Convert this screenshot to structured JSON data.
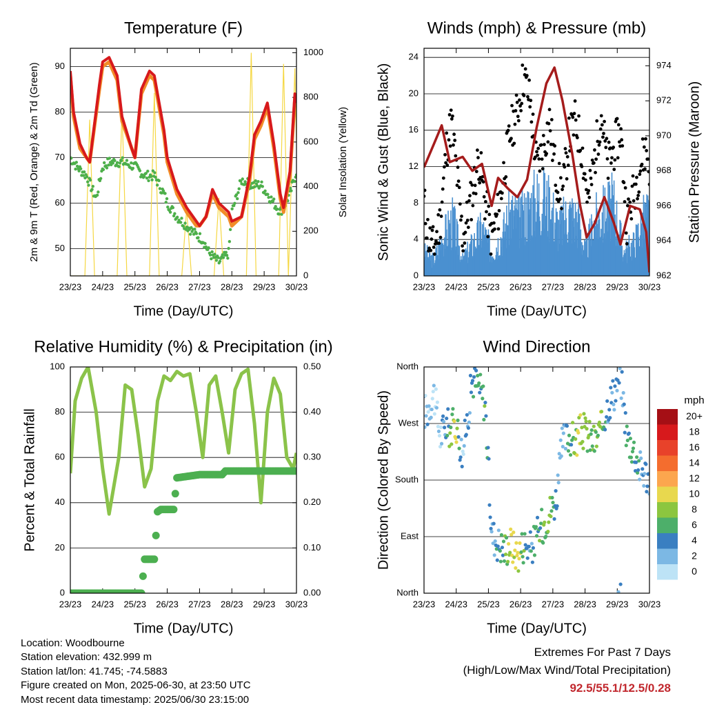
{
  "meta": {
    "location": "Location: Woodbourne",
    "elevation": "Station elevation: 432.999 m",
    "latlon": "Station lat/lon: 41.745; -74.5883",
    "created": "Figure created on Mon, 2025-06-30, at 23:50 UTC",
    "timestamp": "Most recent data timestamp: 2025/06/30 23:15:00"
  },
  "extremes": {
    "title": "Extremes For Past 7 Days",
    "subtitle": "(High/Low/Max Wind/Total Precipitation)",
    "values": "92.5/55.1/12.5/0.28"
  },
  "chart_data": [
    {
      "type": "line",
      "title": "Temperature (F)",
      "xlabel": "Time (Day/UTC)",
      "ylabel": "2m & 9m T (Red, Orange) & 2m Td (Green)",
      "y2label": "Solar Insolation (Yellow)",
      "x_tick_labels": [
        "23/23",
        "24/23",
        "25/23",
        "26/23",
        "27/23",
        "28/23",
        "29/23",
        "30/23"
      ],
      "xlim": [
        0,
        7
      ],
      "ylim": [
        44,
        94
      ],
      "y_ticks": [
        50,
        60,
        70,
        80,
        90
      ],
      "y2lim": [
        0,
        1020
      ],
      "y2_ticks": [
        0,
        200,
        400,
        600,
        800,
        1000
      ],
      "grid": true,
      "colors": {
        "t2m": "#d7191c",
        "t9m": "#f28c28",
        "td2m": "#4daf4a",
        "solar": "#f5d742"
      },
      "series": [
        {
          "key": "t2m",
          "x": [
            0,
            0.1,
            0.3,
            0.5,
            0.6,
            0.9,
            1.0,
            1.2,
            1.45,
            1.6,
            1.9,
            2.0,
            2.2,
            2.45,
            2.6,
            2.9,
            3.0,
            3.3,
            3.6,
            3.9,
            4.0,
            4.2,
            4.4,
            4.6,
            4.9,
            5.0,
            5.3,
            5.55,
            5.7,
            5.9,
            6.1,
            6.3,
            6.5,
            6.6,
            6.8,
            6.95,
            7.0
          ],
          "y": [
            89,
            80,
            73,
            70,
            69,
            86,
            91,
            92,
            88,
            79,
            72,
            70,
            85,
            89,
            88,
            76,
            70,
            63,
            59,
            56,
            55,
            57,
            63,
            60,
            58,
            56,
            57,
            66,
            75,
            78,
            82,
            73,
            62,
            59,
            67,
            84,
            82
          ]
        },
        {
          "key": "t9m",
          "x": [
            0,
            0.1,
            0.3,
            0.5,
            0.6,
            0.9,
            1.0,
            1.2,
            1.45,
            1.6,
            1.9,
            2.0,
            2.2,
            2.45,
            2.6,
            2.9,
            3.0,
            3.3,
            3.6,
            3.9,
            4.0,
            4.2,
            4.4,
            4.6,
            4.9,
            5.0,
            5.3,
            5.55,
            5.7,
            5.9,
            6.1,
            6.3,
            6.5,
            6.6,
            6.8,
            6.95,
            7.0
          ],
          "y": [
            88,
            79,
            72,
            70,
            69,
            85,
            90,
            91,
            87,
            78,
            72,
            70,
            84,
            88,
            87,
            75,
            69,
            62,
            58,
            55,
            55,
            57,
            62,
            59,
            57,
            55,
            57,
            65,
            74,
            77,
            81,
            72,
            61,
            58,
            66,
            83,
            81
          ]
        },
        {
          "key": "td2m",
          "x": [
            0,
            0.2,
            0.5,
            0.8,
            1.0,
            1.2,
            1.6,
            2.0,
            2.3,
            2.6,
            2.9,
            3.0,
            3.3,
            3.6,
            3.9,
            4.1,
            4.3,
            4.6,
            4.9,
            5.0,
            5.3,
            5.6,
            5.9,
            6.2,
            6.5,
            6.8,
            7.0
          ],
          "y": [
            70,
            68,
            66,
            61,
            68,
            69,
            69,
            68,
            66,
            66,
            62,
            60,
            57,
            55,
            53,
            52,
            49,
            47,
            49,
            58,
            65,
            64,
            64,
            61,
            58,
            62,
            67
          ]
        },
        {
          "key": "solar",
          "x": [
            0,
            0.05,
            0.45,
            0.6,
            0.75,
            1.05,
            1.45,
            1.6,
            1.75,
            2.05,
            2.45,
            2.6,
            2.75,
            3.05,
            3.45,
            3.6,
            3.75,
            4.05,
            4.45,
            4.6,
            4.75,
            5.05,
            5.45,
            5.6,
            5.75,
            6.05,
            6.45,
            6.6,
            6.75,
            6.95,
            7.0
          ],
          "y": [
            0,
            0,
            0,
            700,
            0,
            0,
            0,
            750,
            0,
            0,
            0,
            820,
            0,
            0,
            0,
            300,
            0,
            0,
            0,
            350,
            0,
            0,
            0,
            1000,
            0,
            0,
            0,
            950,
            0,
            930,
            600
          ]
        }
      ]
    },
    {
      "type": "scatter",
      "title": "Winds (mph) & Pressure (mb)",
      "xlabel": "Time (Day/UTC)",
      "ylabel": "Sonic Wind & Gust (Blue, Black)",
      "y2label": "Station Pressure (Maroon)",
      "x_tick_labels": [
        "23/23",
        "24/23",
        "25/23",
        "26/23",
        "27/23",
        "28/23",
        "29/23",
        "30/23"
      ],
      "xlim": [
        0,
        7
      ],
      "ylim": [
        0,
        25
      ],
      "y_ticks": [
        0,
        4,
        8,
        12,
        16,
        20,
        24
      ],
      "y2lim": [
        962,
        975
      ],
      "y2_ticks": [
        962,
        964,
        966,
        968,
        970,
        972,
        974
      ],
      "grid": true,
      "colors": {
        "wind": "#4a90d0",
        "gust": "#000000",
        "pressure": "#a51c1c"
      },
      "series": [
        {
          "key": "wind",
          "x": [
            0,
            0.3,
            0.6,
            0.9,
            1.2,
            1.5,
            1.8,
            2.1,
            2.4,
            2.7,
            3.0,
            3.3,
            3.6,
            3.9,
            4.2,
            4.5,
            4.8,
            5.0,
            5.3,
            5.6,
            5.9,
            6.2,
            6.5,
            6.8,
            7.0
          ],
          "y": [
            3,
            2,
            5,
            7,
            2,
            4,
            6,
            3,
            5,
            8,
            7,
            9,
            10,
            9,
            6,
            8,
            7,
            3,
            7,
            8,
            9,
            3,
            4,
            7,
            8
          ]
        },
        {
          "key": "gust",
          "x": [
            0,
            0.15,
            0.3,
            0.5,
            0.7,
            0.85,
            1.0,
            1.2,
            1.5,
            1.7,
            1.9,
            2.1,
            2.3,
            2.5,
            2.7,
            2.9,
            3.1,
            3.3,
            3.5,
            3.7,
            3.9,
            4.1,
            4.3,
            4.5,
            4.7,
            4.9,
            5.1,
            5.3,
            5.5,
            5.7,
            5.9,
            6.1,
            6.3,
            6.5,
            6.7,
            6.9,
            7.0
          ],
          "y": [
            8,
            4,
            3,
            6,
            14,
            17,
            12,
            4,
            9,
            13,
            8,
            4,
            7,
            12,
            16,
            18,
            22,
            19,
            12,
            14,
            17,
            11,
            9,
            15,
            17,
            14,
            8,
            13,
            18,
            12,
            14,
            16,
            6,
            9,
            12,
            14,
            12
          ]
        },
        {
          "key": "pressure",
          "x": [
            0,
            0.3,
            0.55,
            0.8,
            1.2,
            1.5,
            1.8,
            2.1,
            2.3,
            2.6,
            2.9,
            3.2,
            3.5,
            3.8,
            4.05,
            4.3,
            4.6,
            4.85,
            5.05,
            5.3,
            5.6,
            5.9,
            6.1,
            6.4,
            6.7,
            6.9,
            7.0
          ],
          "y": [
            968.2,
            969.5,
            970.6,
            968.5,
            968.8,
            968.0,
            968.4,
            966.0,
            967.6,
            967.0,
            966.5,
            967.5,
            970.5,
            973.0,
            973.9,
            972.0,
            969.0,
            966.0,
            964.2,
            965.0,
            966.5,
            965.0,
            963.8,
            966.0,
            965.8,
            964.5,
            962.2
          ]
        }
      ]
    },
    {
      "type": "line",
      "title": "Relative Humidity (%) & Precipitation (in)",
      "xlabel": "Time (Day/UTC)",
      "ylabel": "Percent & Total Rainfall",
      "x_tick_labels": [
        "23/23",
        "24/23",
        "25/23",
        "26/23",
        "27/23",
        "28/23",
        "29/23",
        "30/23"
      ],
      "xlim": [
        0,
        7
      ],
      "ylim": [
        0,
        100
      ],
      "y_ticks": [
        0,
        20,
        40,
        60,
        80,
        100
      ],
      "y2lim": [
        0,
        0.5
      ],
      "y2_ticks": [
        "0.00",
        "0.10",
        "0.20",
        "0.30",
        "0.40",
        "0.50"
      ],
      "grid": true,
      "colors": {
        "rh": "#8bc34a",
        "precip": "#4caf50"
      },
      "series": [
        {
          "key": "rh",
          "x": [
            0,
            0.15,
            0.35,
            0.55,
            0.8,
            1.0,
            1.2,
            1.5,
            1.7,
            1.9,
            2.1,
            2.3,
            2.5,
            2.7,
            2.9,
            3.1,
            3.3,
            3.5,
            3.7,
            3.9,
            4.1,
            4.3,
            4.5,
            4.7,
            4.9,
            5.1,
            5.3,
            5.5,
            5.7,
            5.9,
            6.1,
            6.3,
            6.5,
            6.7,
            6.9,
            7.0
          ],
          "y": [
            53,
            85,
            95,
            100,
            80,
            55,
            35,
            60,
            92,
            90,
            70,
            47,
            55,
            85,
            96,
            94,
            98,
            96,
            97,
            80,
            60,
            92,
            96,
            80,
            62,
            90,
            97,
            99,
            75,
            40,
            80,
            95,
            88,
            60,
            55,
            62
          ]
        },
        {
          "key": "precip",
          "x": [
            0,
            2.2,
            2.3,
            2.6,
            2.7,
            2.8,
            3.2,
            3.3,
            4.0,
            4.7,
            4.8,
            7.0
          ],
          "y": [
            0,
            0,
            0.075,
            0.075,
            0.18,
            0.185,
            0.185,
            0.255,
            0.262,
            0.262,
            0.27,
            0.27
          ]
        }
      ]
    },
    {
      "type": "scatter",
      "title": "Wind Direction",
      "xlabel": "Time (Day/UTC)",
      "ylabel": "Direction (Colored By Speed)",
      "x_tick_labels": [
        "23/23",
        "24/23",
        "25/23",
        "26/23",
        "27/23",
        "28/23",
        "29/23",
        "30/23"
      ],
      "xlim": [
        0,
        7
      ],
      "ylim": [
        0,
        360
      ],
      "y_tick_labels": [
        "North",
        "East",
        "South",
        "West",
        "North"
      ],
      "grid": true,
      "legend_title": "mph",
      "legend_labels": [
        "20+",
        "18",
        "16",
        "14",
        "12",
        "10",
        "8",
        "6",
        "4",
        "2",
        "0"
      ],
      "legend_colors": [
        "#a50f15",
        "#d7191c",
        "#e8422a",
        "#f46d2e",
        "#fca64e",
        "#e8d84e",
        "#8cc63f",
        "#4daf6a",
        "#3a7fc1",
        "#7cb8e4",
        "#bde3f6"
      ],
      "series": [
        {
          "key": "direction",
          "x": [
            0.1,
            0.3,
            0.5,
            0.7,
            0.8,
            1.0,
            1.2,
            1.5,
            1.7,
            1.9,
            2.1,
            2.3,
            2.5,
            2.7,
            2.9,
            3.1,
            3.3,
            3.5,
            3.7,
            3.9,
            4.1,
            4.3,
            4.5,
            4.7,
            4.9,
            5.1,
            5.3,
            5.5,
            5.7,
            5.9,
            6.1,
            6.3,
            6.5,
            6.7,
            6.9,
            7.0
          ],
          "y": [
            290,
            320,
            250,
            270,
            260,
            270,
            220,
            340,
            330,
            300,
            95,
            80,
            70,
            80,
            60,
            80,
            70,
            90,
            110,
            130,
            150,
            240,
            250,
            240,
            260,
            250,
            240,
            260,
            300,
            320,
            350,
            250,
            230,
            200,
            190,
            180
          ],
          "speed": [
            2,
            1,
            1,
            4,
            6,
            9,
            2,
            4,
            5,
            6,
            3,
            4,
            6,
            9,
            10,
            6,
            4,
            5,
            7,
            8,
            4,
            2,
            5,
            8,
            9,
            7,
            6,
            9,
            4,
            3,
            2,
            5,
            6,
            4,
            3,
            2
          ]
        }
      ]
    }
  ]
}
